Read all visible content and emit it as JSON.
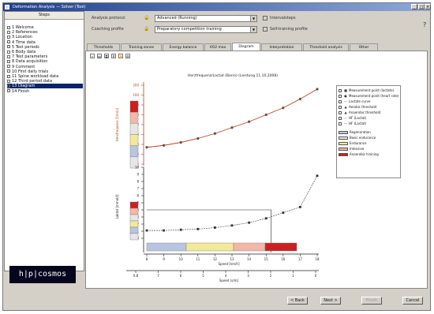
{
  "window": {
    "title": "Deformation Analysis — Solver (Tool)"
  },
  "sidebar": {
    "header": "Steps",
    "items": [
      {
        "label": "1 Welcome",
        "selected": false
      },
      {
        "label": "2 References",
        "selected": false
      },
      {
        "label": "3 Location",
        "selected": false
      },
      {
        "label": "4 Time data",
        "selected": false
      },
      {
        "label": "5 Test periods",
        "selected": false
      },
      {
        "label": "6 Body data",
        "selected": false
      },
      {
        "label": "7 Test parameters",
        "selected": false
      },
      {
        "label": "8 Data acquisition",
        "selected": false
      },
      {
        "label": "9 Comment",
        "selected": false
      },
      {
        "label": "10 First daily trials",
        "selected": false
      },
      {
        "label": "11 Spine workload data",
        "selected": false
      },
      {
        "label": "12 Third period data",
        "selected": false
      },
      {
        "label": "13 Diagram",
        "selected": true
      },
      {
        "label": "14 Finish",
        "selected": false
      }
    ]
  },
  "logo": {
    "text": "h|p|cosmos"
  },
  "protocol": {
    "analysis_label": "Analysis protocol",
    "analysis_value": "Advanced (Running)",
    "coaching_label": "Coaching profile",
    "coaching_value": "Preparatory competition training",
    "option1": "Intervalsteps",
    "option2": "Self-training profile"
  },
  "help_icon_glyph": "?",
  "tabs": [
    {
      "label": "Thresholds",
      "active": false
    },
    {
      "label": "Training zones",
      "active": false
    },
    {
      "label": "Energy balance",
      "active": false
    },
    {
      "label": "VO2 max",
      "active": false
    },
    {
      "label": "Diagram",
      "active": true
    },
    {
      "label": "Interpretation",
      "active": false
    },
    {
      "label": "Threshold analysis",
      "active": false
    },
    {
      "label": "Other",
      "active": false
    }
  ],
  "toolbar": {
    "tools": [
      "zoom-icon",
      "print-icon",
      "copy-icon",
      "grid-icon",
      "hand-icon",
      "settings-icon"
    ]
  },
  "legend": {
    "items": [
      {
        "label": "Measurement point (lactate)",
        "marker": "■",
        "color": "#333333"
      },
      {
        "label": "Measurement point (heart rate)",
        "marker": "●",
        "color": "#333333"
      },
      {
        "label": "Lactate curve",
        "marker": "—",
        "color": "#555555"
      },
      {
        "label": "Aerobic threshold",
        "marker": "▲",
        "color": "#333333"
      },
      {
        "label": "Anaerobic threshold",
        "marker": "▲",
        "color": "#333333"
      },
      {
        "label": "HF (Lactat)",
        "marker": "—",
        "color": "#c04020"
      },
      {
        "label": "HF (Lactat)",
        "marker": "—",
        "color": "#555555"
      }
    ],
    "zones": [
      {
        "label": "Regeneration",
        "color": "#b8c4e0"
      },
      {
        "label": "Basic endurance",
        "color": "#e6e6e6"
      },
      {
        "label": "Endurance",
        "color": "#f2e89a"
      },
      {
        "label": "Intensive",
        "color": "#f1b7a8"
      },
      {
        "label": "Anaerobic training",
        "color": "#cc2020"
      }
    ]
  },
  "chart_data": [
    {
      "type": "line",
      "title": "Herzfrequenz/Lactat (Barro) (Leistung 11.10.2008)",
      "ylabel": "Herzfrequenz [1/min]",
      "y_ticks": [
        "200",
        "190",
        "180",
        "170",
        "160",
        "150",
        "140",
        "130",
        "120"
      ],
      "ylim": [
        120,
        200
      ],
      "x": [
        8,
        9,
        10,
        11,
        12,
        13,
        14,
        15,
        16,
        17,
        18
      ],
      "series": [
        {
          "values": [
            137,
            139,
            142,
            146,
            151,
            157,
            163,
            170,
            177,
            186,
            196
          ]
        }
      ],
      "zones_bar_colors": [
        "#cc2020",
        "#f1b7a8",
        "#e6e6e6",
        "#f2e89a",
        "#b8c4e0",
        "#e6e6e6"
      ]
    },
    {
      "type": "line",
      "ylabel": "Laktat [mmol/l]",
      "y_ticks": [
        "10",
        "9",
        "8",
        "7",
        "6",
        "5",
        "4",
        "3",
        "2",
        "1",
        "0"
      ],
      "ylim": [
        0,
        10
      ],
      "x": [
        8,
        9,
        10,
        11,
        12,
        13,
        14,
        15,
        16,
        17,
        18
      ],
      "series": [
        {
          "values": [
            1.1,
            1.1,
            1.2,
            1.3,
            1.5,
            1.8,
            2.2,
            2.8,
            3.6,
            4.4,
            8.8
          ]
        }
      ],
      "zones_bar_colors": [
        "#cc2020",
        "#f1b7a8",
        "#e6e6e6",
        "#f2e89a",
        "#b8c4e0",
        "#e6e6e6"
      ],
      "threshold": {
        "x": 15.3,
        "y": 4.0
      }
    }
  ],
  "axis_bottom": {
    "speed_label": "Speed [km/h]",
    "speed_ticks": [
      "8",
      "9",
      "10",
      "11",
      "12",
      "13",
      "14",
      "15",
      "16",
      "17",
      "18"
    ],
    "pace_label": "Speed [s/m]",
    "pace_ticks": [
      "0:8",
      "7",
      "6",
      "5",
      "4",
      "3",
      "2",
      "1",
      "0"
    ]
  },
  "buttons": {
    "back": "< Back",
    "next": "Next >",
    "finish": "Finish",
    "cancel": "Cancel"
  },
  "colors": {
    "accent": "#0a246a",
    "hr_line": "#c04020",
    "lactate_line": "#555555"
  }
}
